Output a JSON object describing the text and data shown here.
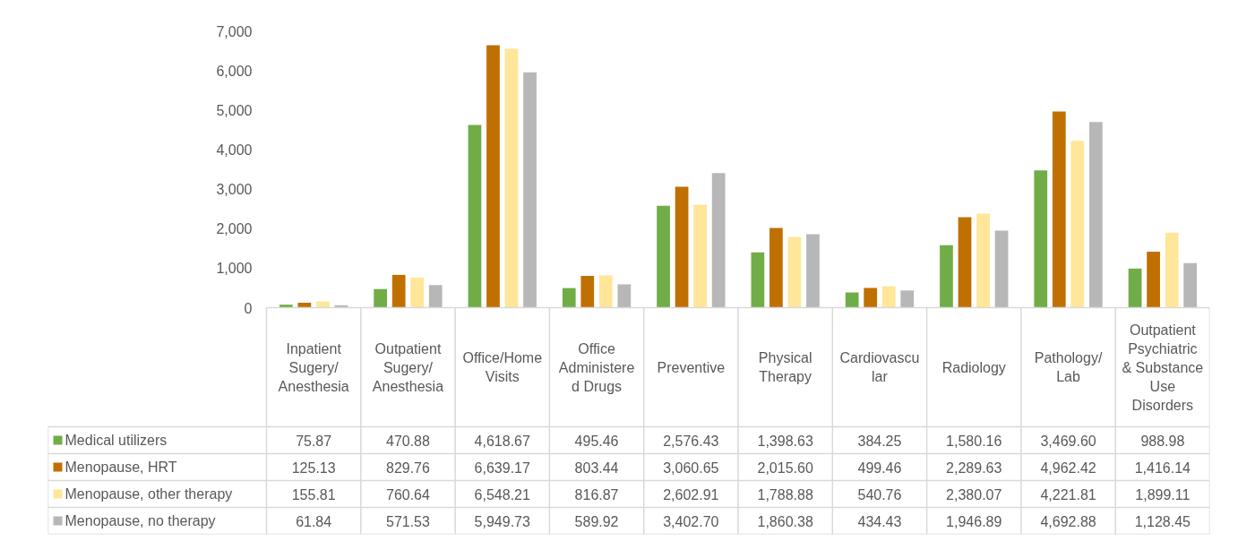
{
  "chart_data": {
    "type": "bar",
    "categories": [
      "Inpatient Sugery/ Anesthesia",
      "Outpatient Sugery/ Anesthesia",
      "Office/Home Visits",
      "Office Administered Drugs",
      "Preventive",
      "Physical Therapy",
      "Cardiovascular",
      "Radiology",
      "Pathology/ Lab",
      "Outpatient Psychiatric & Substance Use Disorders"
    ],
    "series": [
      {
        "name": "Medical utilizers",
        "color": "#70ad47",
        "values": [
          75.87,
          470.88,
          4618.67,
          495.46,
          2576.43,
          1398.63,
          384.25,
          1580.16,
          3469.6,
          988.98
        ],
        "value_labels": [
          "75.87",
          "470.88",
          "4,618.67",
          "495.46",
          "2,576.43",
          "1,398.63",
          "384.25",
          "1,580.16",
          "3,469.60",
          "988.98"
        ]
      },
      {
        "name": "Menopause, HRT",
        "color": "#c07000",
        "values": [
          125.13,
          829.76,
          6639.17,
          803.44,
          3060.65,
          2015.6,
          499.46,
          2289.63,
          4962.42,
          1416.14
        ],
        "value_labels": [
          "125.13",
          "829.76",
          "6,639.17",
          "803.44",
          "3,060.65",
          "2,015.60",
          "499.46",
          "2,289.63",
          "4,962.42",
          "1,416.14"
        ]
      },
      {
        "name": "Menopause, other therapy",
        "color": "#ffe699",
        "values": [
          155.81,
          760.64,
          6548.21,
          816.87,
          2602.91,
          1788.88,
          540.76,
          2380.07,
          4221.81,
          1899.11
        ],
        "value_labels": [
          "155.81",
          "760.64",
          "6,548.21",
          "816.87",
          "2,602.91",
          "1,788.88",
          "540.76",
          "2,380.07",
          "4,221.81",
          "1,899.11"
        ]
      },
      {
        "name": "Menopause, no therapy",
        "color": "#b7b7b7",
        "values": [
          61.84,
          571.53,
          5949.73,
          589.92,
          3402.7,
          1860.38,
          434.43,
          1946.89,
          4692.88,
          1128.45
        ],
        "value_labels": [
          "61.84",
          "571.53",
          "5,949.73",
          "589.92",
          "3,402.70",
          "1,860.38",
          "434.43",
          "1,946.89",
          "4,692.88",
          "1,128.45"
        ]
      }
    ],
    "ylim": [
      0,
      7000
    ],
    "yticks": [
      {
        "value": 0,
        "label": "0"
      },
      {
        "value": 1000,
        "label": "1,000"
      },
      {
        "value": 2000,
        "label": "2,000"
      },
      {
        "value": 3000,
        "label": "3,000"
      },
      {
        "value": 4000,
        "label": "4,000"
      },
      {
        "value": 5000,
        "label": "5,000"
      },
      {
        "value": 6000,
        "label": "6,000"
      },
      {
        "value": 7000,
        "label": "7,000"
      }
    ],
    "grid": false,
    "legend": "bottom"
  }
}
